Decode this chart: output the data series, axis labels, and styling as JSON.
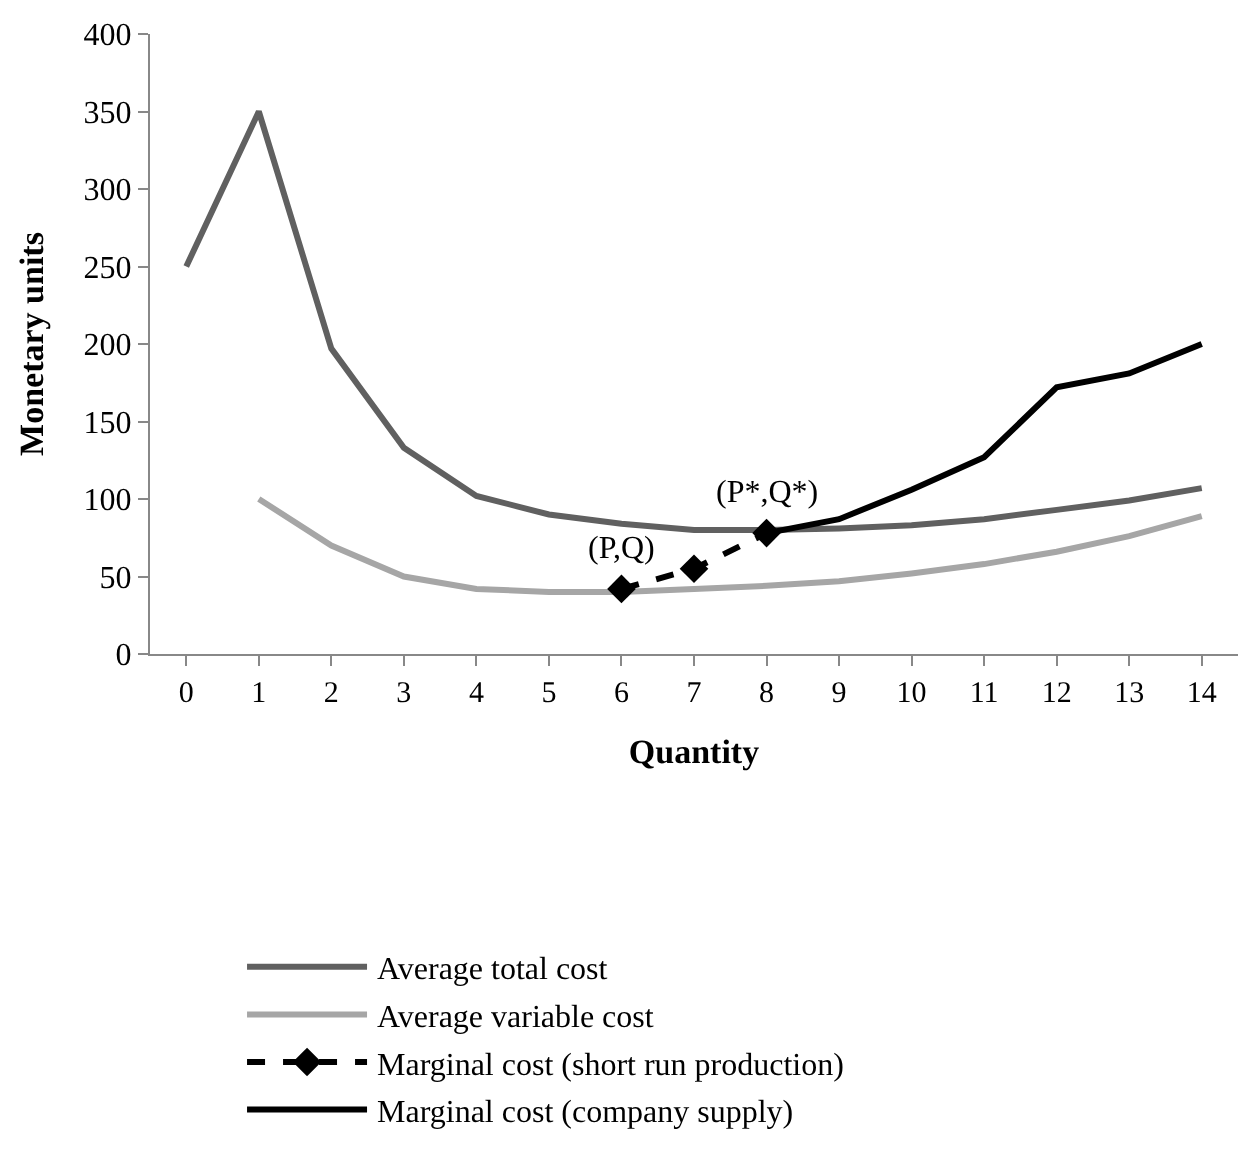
{
  "chart_data": {
    "type": "line",
    "xlabel": "Quantity",
    "ylabel": "Monetary units",
    "x": [
      0,
      1,
      2,
      3,
      4,
      5,
      6,
      7,
      8,
      9,
      10,
      11,
      12,
      13,
      14
    ],
    "xlim": [
      -0.5,
      14.5
    ],
    "xticks": [
      0,
      1,
      2,
      3,
      4,
      5,
      6,
      7,
      8,
      9,
      10,
      11,
      12,
      13,
      14
    ],
    "ylim": [
      0,
      400
    ],
    "yticks": [
      0,
      50,
      100,
      150,
      200,
      250,
      300,
      350,
      400
    ],
    "legend": "bottom",
    "series": [
      {
        "name": "Average total cost",
        "color": "#606060",
        "line_style": "solid",
        "marker": "none",
        "values": [
          250,
          350,
          197,
          133,
          102,
          90,
          84,
          80,
          80,
          81,
          83,
          87,
          93,
          99,
          107
        ]
      },
      {
        "name": "Average variable cost",
        "color": "#a6a6a6",
        "line_style": "solid",
        "marker": "none",
        "values": [
          null,
          100,
          70,
          50,
          42,
          40,
          40,
          42,
          44,
          47,
          52,
          58,
          66,
          76,
          89
        ]
      },
      {
        "name": "Marginal cost (short run production)",
        "color": "#000000",
        "line_style": "dashed",
        "marker": "diamond",
        "values": [
          null,
          null,
          null,
          null,
          null,
          null,
          42,
          55,
          78,
          null,
          null,
          null,
          null,
          null,
          null
        ]
      },
      {
        "name": "Marginal cost (company supply)",
        "color": "#000000",
        "line_style": "solid",
        "marker": "none",
        "values": [
          null,
          null,
          null,
          null,
          null,
          null,
          null,
          null,
          78,
          87,
          106,
          127,
          172,
          181,
          200
        ]
      }
    ],
    "annotations": [
      {
        "text": "(P,Q)",
        "x": 6,
        "y": 42
      },
      {
        "text": "(P*,Q*)",
        "x": 8,
        "y": 78
      }
    ]
  }
}
